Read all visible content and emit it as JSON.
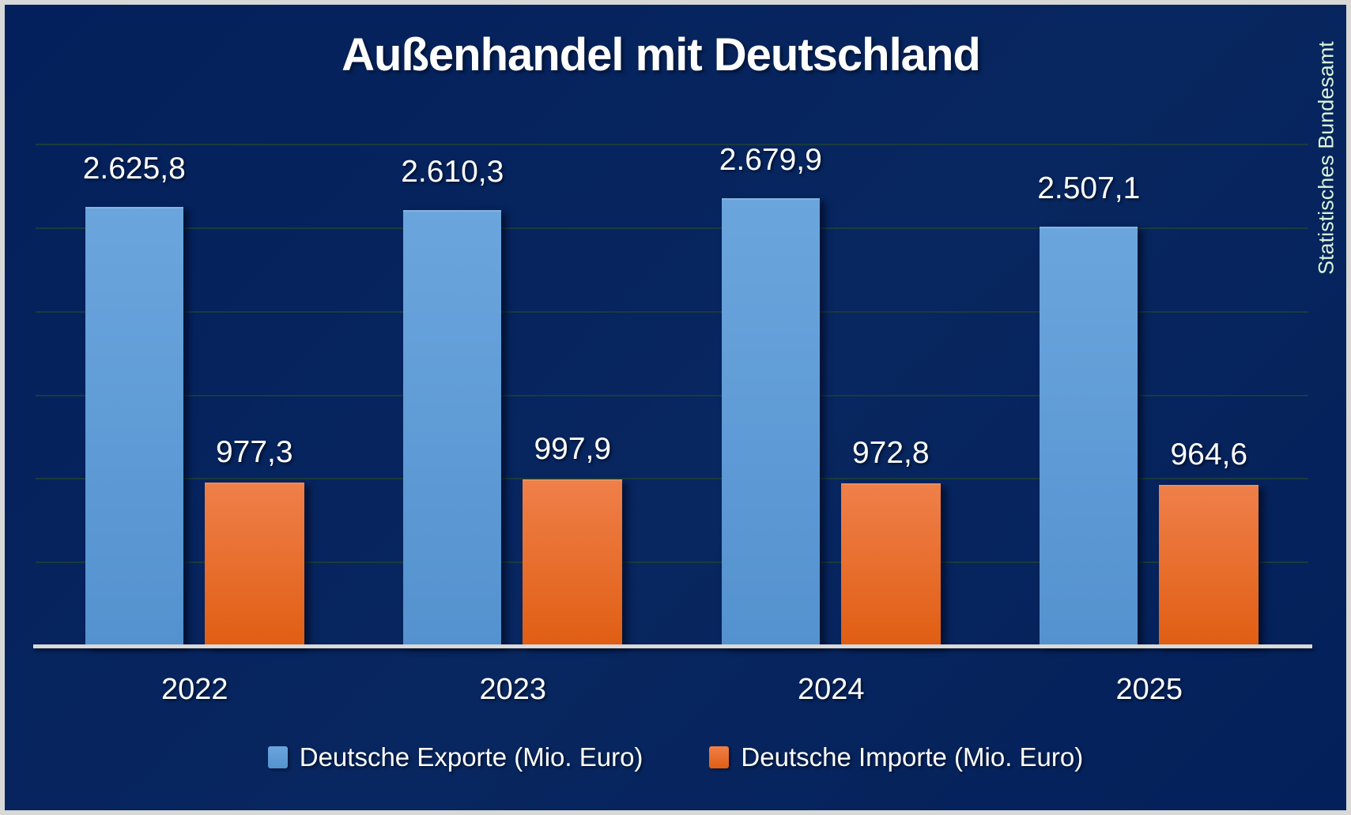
{
  "title": "Außenhandel mit Deutschland",
  "source_label": "Statistisches Bundesamt",
  "colors": {
    "background": "#05225e",
    "frame_border": "#d8d8d8",
    "gridline": "#1a3b3d",
    "axis_line": "#d9d9d9",
    "text": "#ffffff",
    "source_text": "#d9f4da",
    "export_blue": "#5b9bd5",
    "import_orange": "#e8671c"
  },
  "chart_data": {
    "type": "bar",
    "title": "Außenhandel mit Deutschland",
    "categories": [
      "2022",
      "2023",
      "2024",
      "2025"
    ],
    "series": [
      {
        "name": "Deutsche Exporte (Mio. Euro)",
        "color": "#5b9bd5",
        "color_light": "#6ba5dd",
        "color_dark": "#5492cf",
        "values": [
          2625.8,
          2610.3,
          2679.9,
          2507.1
        ],
        "labels": [
          "2.625,8",
          "2.610,3",
          "2.679,9",
          "2.507,1"
        ]
      },
      {
        "name": "Deutsche Importe (Mio. Euro)",
        "color": "#e8671c",
        "color_light": "#ef7f49",
        "color_dark": "#e05e13",
        "values": [
          977.3,
          997.9,
          972.8,
          964.6
        ],
        "labels": [
          "977,3",
          "997,9",
          "972,8",
          "964,6"
        ]
      }
    ],
    "xlabel": "",
    "ylabel": "",
    "ylim": [
      0,
      3000
    ],
    "gridline_interval": 500,
    "grid": true,
    "legend_position": "bottom"
  }
}
